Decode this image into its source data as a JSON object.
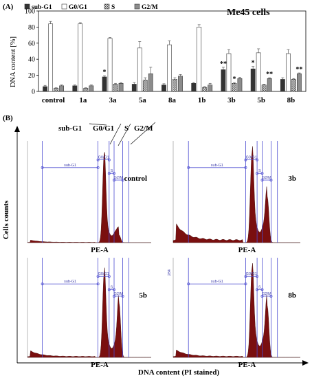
{
  "panel_a_label": "(A)",
  "panel_b_label": "(B)",
  "chart_data": [
    {
      "type": "bar",
      "title": "Me45 cells",
      "ylabel": "DNA content [%]",
      "ylim": [
        0,
        100
      ],
      "yticks": [
        0,
        20,
        40,
        60,
        80,
        100
      ],
      "categories": [
        "control",
        "1a",
        "3a",
        "5a",
        "8a",
        "1b",
        "3b",
        "5b",
        "8b"
      ],
      "series": [
        {
          "name": "sub-G1",
          "color": "#333333",
          "pattern": "solid",
          "values": [
            6,
            7,
            18,
            9,
            8,
            10,
            27,
            28,
            15
          ],
          "errors": [
            1.5,
            1,
            1.5,
            2,
            1.5,
            1,
            3,
            3,
            2
          ],
          "significance": [
            "",
            "",
            "*",
            "",
            "",
            "",
            "**",
            "*",
            ""
          ]
        },
        {
          "name": "G0/G1",
          "color": "#ffffff",
          "pattern": "open",
          "values": [
            84,
            84,
            66,
            54,
            58,
            80,
            47,
            48,
            47
          ],
          "errors": [
            3,
            1.5,
            1,
            8,
            5,
            3,
            5,
            5,
            5
          ],
          "significance": [
            "",
            "",
            "",
            "",
            "",
            "",
            "",
            "",
            ""
          ]
        },
        {
          "name": "S",
          "color": "#9a9a9a",
          "pattern": "checker",
          "values": [
            4,
            4,
            9,
            14,
            15,
            5,
            10,
            8,
            15
          ],
          "errors": [
            0.5,
            0.5,
            1,
            3,
            2,
            1,
            1,
            1,
            1
          ],
          "significance": [
            "",
            "",
            "",
            "",
            "",
            "",
            "*",
            "",
            ""
          ]
        },
        {
          "name": "G2/M",
          "color": "#8c8c8c",
          "pattern": "solid",
          "values": [
            7,
            7,
            10,
            22,
            19,
            8,
            16,
            16,
            22
          ],
          "errors": [
            1,
            1,
            1,
            8,
            2,
            2,
            1.5,
            1,
            1
          ],
          "significance": [
            "",
            "",
            "",
            "",
            "",
            "",
            "",
            "**",
            "**"
          ]
        }
      ]
    },
    {
      "type": "area",
      "y_title": "Cells counts",
      "x_title": "DNA content (PI stained)",
      "phase_labels": [
        "sub-G1",
        "G0/G1",
        "S",
        "G2/M"
      ],
      "x_axis_name": "PE-A",
      "gates": [
        "sub-G1",
        "G0/G1",
        "S",
        "G2/M"
      ],
      "histograms": [
        {
          "label": "control",
          "subg1": 0.03,
          "g1_height": 0.92,
          "s_level": 0.12,
          "g2_height": 0.08
        },
        {
          "label": "3b",
          "subg1": 0.22,
          "g1_height": 0.94,
          "s_level": 0.18,
          "g2_height": 0.48
        },
        {
          "label": "5b",
          "subg1": 0.08,
          "g1_height": 0.9,
          "s_level": 0.16,
          "g2_height": 0.58
        },
        {
          "label": "8b",
          "subg1": 0.09,
          "g1_height": 0.95,
          "s_level": 0.2,
          "g2_height": 0.55
        }
      ],
      "corner_tick": "284"
    }
  ]
}
